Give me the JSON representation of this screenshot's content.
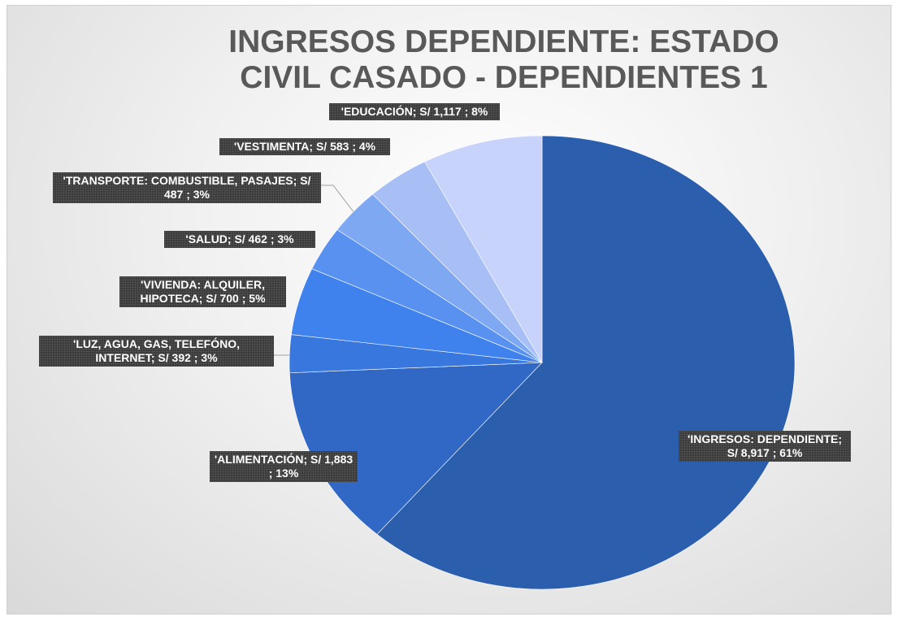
{
  "chart_data": {
    "type": "pie",
    "title": "INGRESOS DEPENDIENTE: ESTADO CIVIL CASADO - DEPENDIENTES 1",
    "categories": [
      "'INGRESOS: DEPENDIENTE;",
      "'ALIMENTACIÓN;",
      "'LUZ, AGUA, GAS, TELEFÓNO, INTERNET;",
      "'VIVIENDA: ALQUILER, HIPOTECA;",
      "'SALUD;",
      "'TRANSPORTE: COMBUSTIBLE, PASAJES;",
      "'VESTIMENTA;",
      "'EDUCACIÓN;"
    ],
    "values": [
      8917,
      1883,
      392,
      700,
      462,
      487,
      583,
      1117
    ],
    "value_labels": [
      "S/ 8,917 ; 61%",
      "S/ 1,883 ; 13%",
      "S/ 392 ; 3%",
      "S/ 700 ; 5%",
      "S/ 462 ; 3%",
      "S/ 487 ; 3%",
      "S/ 583 ; 4%",
      "S/ 1,117 ; 8%"
    ],
    "colors": [
      "#2c5eae",
      "#3168c6",
      "#3877de",
      "#3f82ee",
      "#5891f0",
      "#7ea9f2",
      "#a7bff5",
      "#c7d3fa"
    ]
  }
}
